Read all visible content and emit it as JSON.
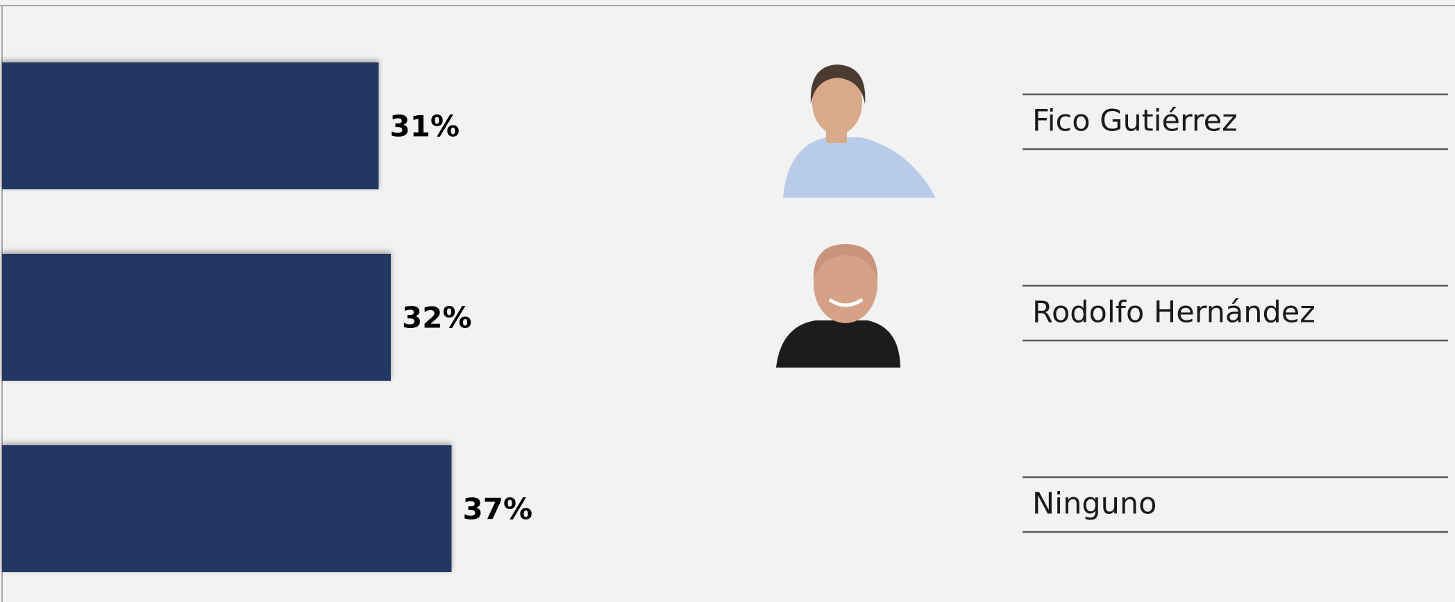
{
  "chart_data": {
    "type": "bar",
    "orientation": "horizontal",
    "categories": [
      "Fico Gutiérrez",
      "Rodolfo Hernández",
      "Ninguno"
    ],
    "values": [
      31,
      32,
      37
    ],
    "value_labels": [
      "31%",
      "32%",
      "37%"
    ],
    "color": "#203864"
  }
}
